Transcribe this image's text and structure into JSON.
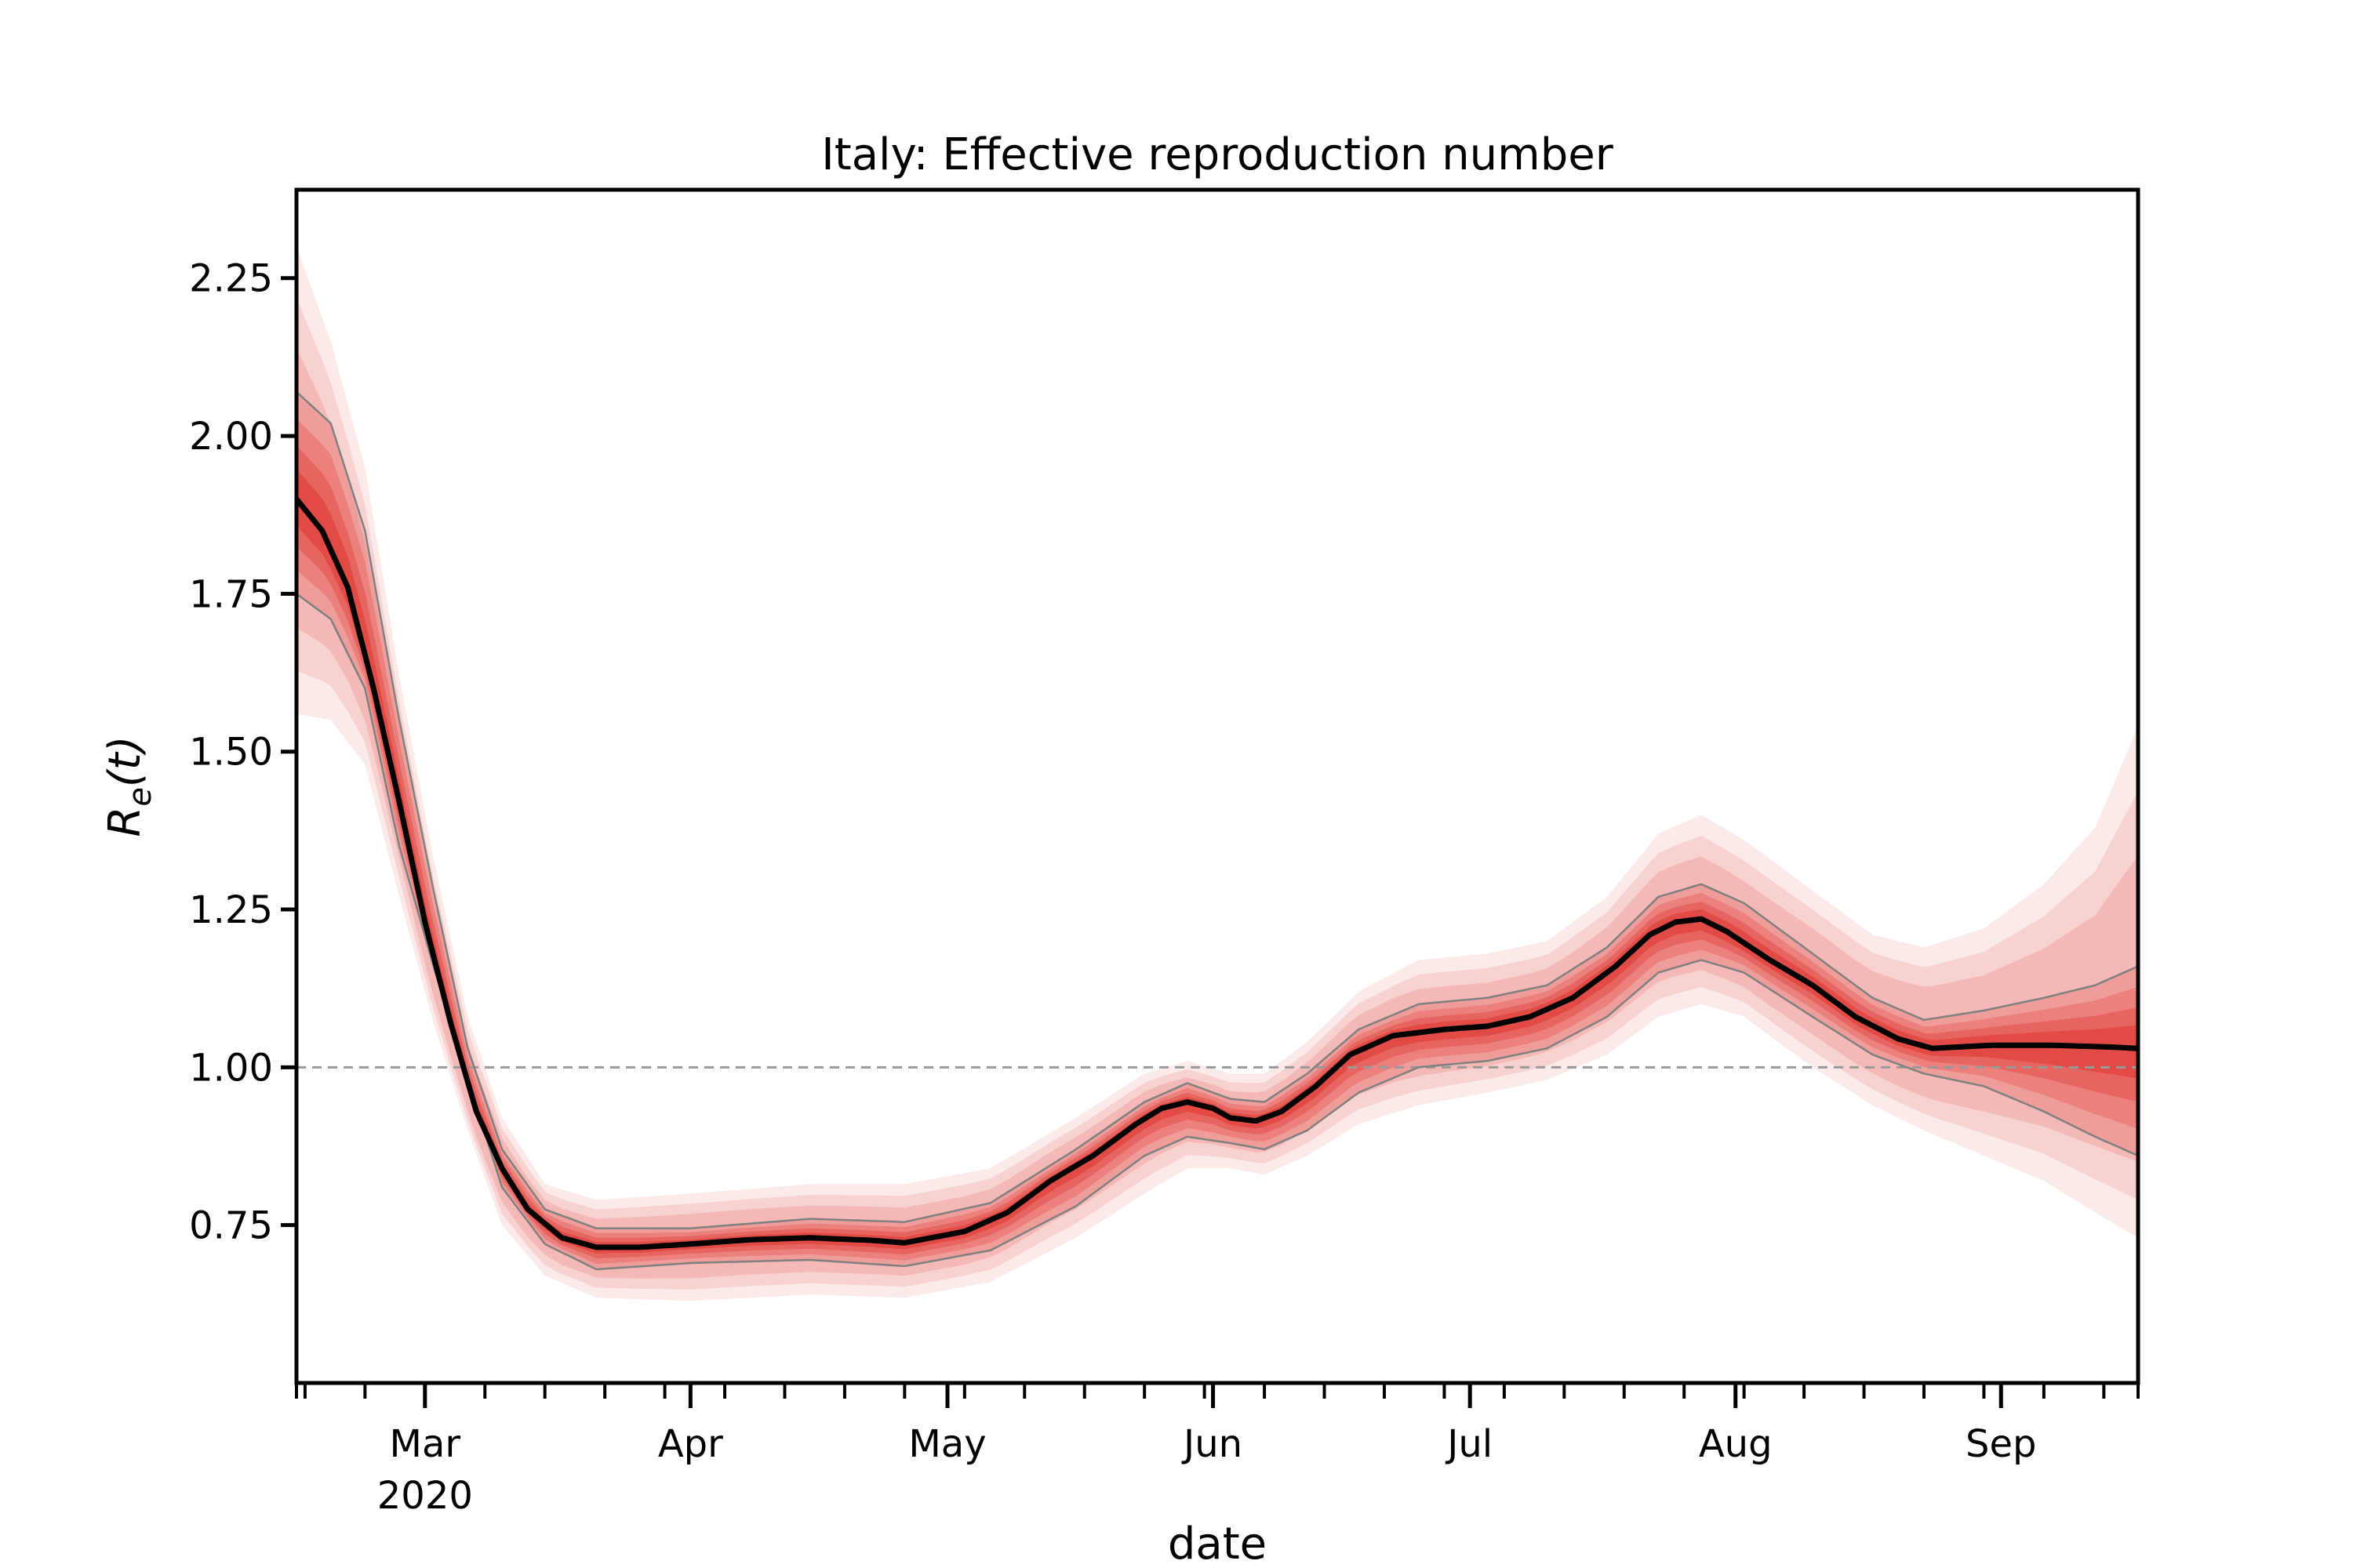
{
  "chart_data": {
    "type": "line",
    "title": "Italy: Effective reproduction number",
    "xlabel": "date",
    "ylabel": "R_e(t)",
    "ylabel_parts": {
      "main": "R",
      "sub": "e",
      "arg": "(t)"
    },
    "x_range": [
      "2020-02-15",
      "2020-09-17"
    ],
    "ylim": [
      0.5,
      2.39
    ],
    "grid": false,
    "yticks": [
      "0.75",
      "1.00",
      "1.25",
      "1.50",
      "1.75",
      "2.00",
      "2.25"
    ],
    "xtick_labels": [
      {
        "date": "2020-03-01",
        "label": "Mar",
        "sublabel": "2020"
      },
      {
        "date": "2020-04-01",
        "label": "Apr"
      },
      {
        "date": "2020-05-01",
        "label": "May"
      },
      {
        "date": "2020-06-01",
        "label": "Jun"
      },
      {
        "date": "2020-07-01",
        "label": "Jul"
      },
      {
        "date": "2020-08-01",
        "label": "Aug"
      },
      {
        "date": "2020-09-01",
        "label": "Sep"
      }
    ],
    "reference_line": {
      "y": 1.0,
      "style": "dashed",
      "color": "#999999"
    },
    "colors": {
      "median": "#000000",
      "band": "#de2d26",
      "interval_line": "#808080"
    },
    "series": [
      {
        "type": "median",
        "points": [
          [
            "2020-02-15",
            1.9
          ],
          [
            "2020-02-18",
            1.85
          ],
          [
            "2020-02-21",
            1.76
          ],
          [
            "2020-02-24",
            1.6
          ],
          [
            "2020-02-27",
            1.42
          ],
          [
            "2020-03-01",
            1.23
          ],
          [
            "2020-03-04",
            1.07
          ],
          [
            "2020-03-07",
            0.93
          ],
          [
            "2020-03-10",
            0.84
          ],
          [
            "2020-03-13",
            0.775
          ],
          [
            "2020-03-17",
            0.73
          ],
          [
            "2020-03-21",
            0.715
          ],
          [
            "2020-03-26",
            0.715
          ],
          [
            "2020-04-01",
            0.72
          ],
          [
            "2020-04-08",
            0.727
          ],
          [
            "2020-04-15",
            0.73
          ],
          [
            "2020-04-22",
            0.726
          ],
          [
            "2020-04-26",
            0.722
          ],
          [
            "2020-05-03",
            0.74
          ],
          [
            "2020-05-08",
            0.77
          ],
          [
            "2020-05-13",
            0.82
          ],
          [
            "2020-05-18",
            0.86
          ],
          [
            "2020-05-23",
            0.91
          ],
          [
            "2020-05-26",
            0.935
          ],
          [
            "2020-05-29",
            0.945
          ],
          [
            "2020-06-01",
            0.935
          ],
          [
            "2020-06-03",
            0.92
          ],
          [
            "2020-06-06",
            0.915
          ],
          [
            "2020-06-09",
            0.93
          ],
          [
            "2020-06-13",
            0.97
          ],
          [
            "2020-06-17",
            1.02
          ],
          [
            "2020-06-22",
            1.05
          ],
          [
            "2020-06-28",
            1.06
          ],
          [
            "2020-07-03",
            1.065
          ],
          [
            "2020-07-08",
            1.08
          ],
          [
            "2020-07-13",
            1.11
          ],
          [
            "2020-07-18",
            1.16
          ],
          [
            "2020-07-22",
            1.21
          ],
          [
            "2020-07-25",
            1.23
          ],
          [
            "2020-07-28",
            1.235
          ],
          [
            "2020-07-31",
            1.215
          ],
          [
            "2020-08-05",
            1.17
          ],
          [
            "2020-08-10",
            1.13
          ],
          [
            "2020-08-15",
            1.08
          ],
          [
            "2020-08-20",
            1.045
          ],
          [
            "2020-08-24",
            1.03
          ],
          [
            "2020-08-31",
            1.035
          ],
          [
            "2020-09-07",
            1.035
          ],
          [
            "2020-09-14",
            1.032
          ],
          [
            "2020-09-17",
            1.03
          ]
        ]
      },
      {
        "type": "interval_upper",
        "points": [
          [
            "2020-02-15",
            2.07
          ],
          [
            "2020-02-19",
            2.02
          ],
          [
            "2020-02-23",
            1.85
          ],
          [
            "2020-02-27",
            1.55
          ],
          [
            "2020-03-02",
            1.28
          ],
          [
            "2020-03-06",
            1.03
          ],
          [
            "2020-03-10",
            0.87
          ],
          [
            "2020-03-15",
            0.775
          ],
          [
            "2020-03-21",
            0.745
          ],
          [
            "2020-04-01",
            0.745
          ],
          [
            "2020-04-15",
            0.76
          ],
          [
            "2020-04-26",
            0.755
          ],
          [
            "2020-05-06",
            0.785
          ],
          [
            "2020-05-16",
            0.87
          ],
          [
            "2020-05-24",
            0.945
          ],
          [
            "2020-05-29",
            0.975
          ],
          [
            "2020-06-03",
            0.95
          ],
          [
            "2020-06-07",
            0.945
          ],
          [
            "2020-06-12",
            0.99
          ],
          [
            "2020-06-18",
            1.06
          ],
          [
            "2020-06-25",
            1.1
          ],
          [
            "2020-07-03",
            1.11
          ],
          [
            "2020-07-10",
            1.13
          ],
          [
            "2020-07-17",
            1.19
          ],
          [
            "2020-07-23",
            1.27
          ],
          [
            "2020-07-28",
            1.29
          ],
          [
            "2020-08-02",
            1.26
          ],
          [
            "2020-08-10",
            1.18
          ],
          [
            "2020-08-17",
            1.11
          ],
          [
            "2020-08-23",
            1.075
          ],
          [
            "2020-08-30",
            1.09
          ],
          [
            "2020-09-06",
            1.11
          ],
          [
            "2020-09-12",
            1.13
          ],
          [
            "2020-09-17",
            1.16
          ]
        ]
      },
      {
        "type": "interval_lower",
        "points": [
          [
            "2020-02-15",
            1.75
          ],
          [
            "2020-02-19",
            1.71
          ],
          [
            "2020-02-23",
            1.6
          ],
          [
            "2020-02-27",
            1.35
          ],
          [
            "2020-03-02",
            1.16
          ],
          [
            "2020-03-06",
            0.98
          ],
          [
            "2020-03-10",
            0.81
          ],
          [
            "2020-03-15",
            0.72
          ],
          [
            "2020-03-21",
            0.68
          ],
          [
            "2020-04-01",
            0.69
          ],
          [
            "2020-04-15",
            0.695
          ],
          [
            "2020-04-26",
            0.685
          ],
          [
            "2020-05-06",
            0.71
          ],
          [
            "2020-05-16",
            0.78
          ],
          [
            "2020-05-24",
            0.86
          ],
          [
            "2020-05-29",
            0.89
          ],
          [
            "2020-06-03",
            0.88
          ],
          [
            "2020-06-07",
            0.87
          ],
          [
            "2020-06-12",
            0.9
          ],
          [
            "2020-06-18",
            0.96
          ],
          [
            "2020-06-25",
            1.0
          ],
          [
            "2020-07-03",
            1.01
          ],
          [
            "2020-07-10",
            1.03
          ],
          [
            "2020-07-17",
            1.08
          ],
          [
            "2020-07-23",
            1.15
          ],
          [
            "2020-07-28",
            1.17
          ],
          [
            "2020-08-02",
            1.15
          ],
          [
            "2020-08-10",
            1.08
          ],
          [
            "2020-08-17",
            1.02
          ],
          [
            "2020-08-23",
            0.99
          ],
          [
            "2020-08-30",
            0.97
          ],
          [
            "2020-09-06",
            0.93
          ],
          [
            "2020-09-12",
            0.89
          ],
          [
            "2020-09-17",
            0.86
          ]
        ]
      },
      {
        "type": "outer_upper",
        "points": [
          [
            "2020-02-15",
            2.3
          ],
          [
            "2020-02-19",
            2.15
          ],
          [
            "2020-02-23",
            1.95
          ],
          [
            "2020-02-27",
            1.62
          ],
          [
            "2020-03-02",
            1.33
          ],
          [
            "2020-03-06",
            1.08
          ],
          [
            "2020-03-10",
            0.92
          ],
          [
            "2020-03-15",
            0.815
          ],
          [
            "2020-03-21",
            0.79
          ],
          [
            "2020-04-01",
            0.8
          ],
          [
            "2020-04-15",
            0.815
          ],
          [
            "2020-04-26",
            0.815
          ],
          [
            "2020-05-06",
            0.84
          ],
          [
            "2020-05-16",
            0.92
          ],
          [
            "2020-05-24",
            0.99
          ],
          [
            "2020-05-29",
            1.01
          ],
          [
            "2020-06-03",
            0.99
          ],
          [
            "2020-06-07",
            0.99
          ],
          [
            "2020-06-12",
            1.04
          ],
          [
            "2020-06-18",
            1.12
          ],
          [
            "2020-06-25",
            1.17
          ],
          [
            "2020-07-03",
            1.18
          ],
          [
            "2020-07-10",
            1.2
          ],
          [
            "2020-07-17",
            1.27
          ],
          [
            "2020-07-23",
            1.37
          ],
          [
            "2020-07-28",
            1.4
          ],
          [
            "2020-08-02",
            1.36
          ],
          [
            "2020-08-10",
            1.28
          ],
          [
            "2020-08-17",
            1.21
          ],
          [
            "2020-08-23",
            1.19
          ],
          [
            "2020-08-30",
            1.22
          ],
          [
            "2020-09-06",
            1.29
          ],
          [
            "2020-09-12",
            1.38
          ],
          [
            "2020-09-17",
            1.54
          ]
        ]
      },
      {
        "type": "outer_lower",
        "points": [
          [
            "2020-02-15",
            1.56
          ],
          [
            "2020-02-19",
            1.55
          ],
          [
            "2020-02-23",
            1.48
          ],
          [
            "2020-02-27",
            1.27
          ],
          [
            "2020-03-02",
            1.07
          ],
          [
            "2020-03-06",
            0.9
          ],
          [
            "2020-03-10",
            0.75
          ],
          [
            "2020-03-15",
            0.67
          ],
          [
            "2020-03-21",
            0.635
          ],
          [
            "2020-04-01",
            0.63
          ],
          [
            "2020-04-15",
            0.64
          ],
          [
            "2020-04-26",
            0.635
          ],
          [
            "2020-05-06",
            0.66
          ],
          [
            "2020-05-16",
            0.73
          ],
          [
            "2020-05-24",
            0.8
          ],
          [
            "2020-05-29",
            0.84
          ],
          [
            "2020-06-03",
            0.84
          ],
          [
            "2020-06-07",
            0.83
          ],
          [
            "2020-06-12",
            0.86
          ],
          [
            "2020-06-18",
            0.91
          ],
          [
            "2020-06-25",
            0.94
          ],
          [
            "2020-07-03",
            0.96
          ],
          [
            "2020-07-10",
            0.98
          ],
          [
            "2020-07-17",
            1.02
          ],
          [
            "2020-07-23",
            1.08
          ],
          [
            "2020-07-28",
            1.1
          ],
          [
            "2020-08-02",
            1.08
          ],
          [
            "2020-08-10",
            1.0
          ],
          [
            "2020-08-17",
            0.94
          ],
          [
            "2020-08-23",
            0.9
          ],
          [
            "2020-08-30",
            0.86
          ],
          [
            "2020-09-06",
            0.82
          ],
          [
            "2020-09-12",
            0.77
          ],
          [
            "2020-09-17",
            0.73
          ]
        ]
      }
    ]
  }
}
